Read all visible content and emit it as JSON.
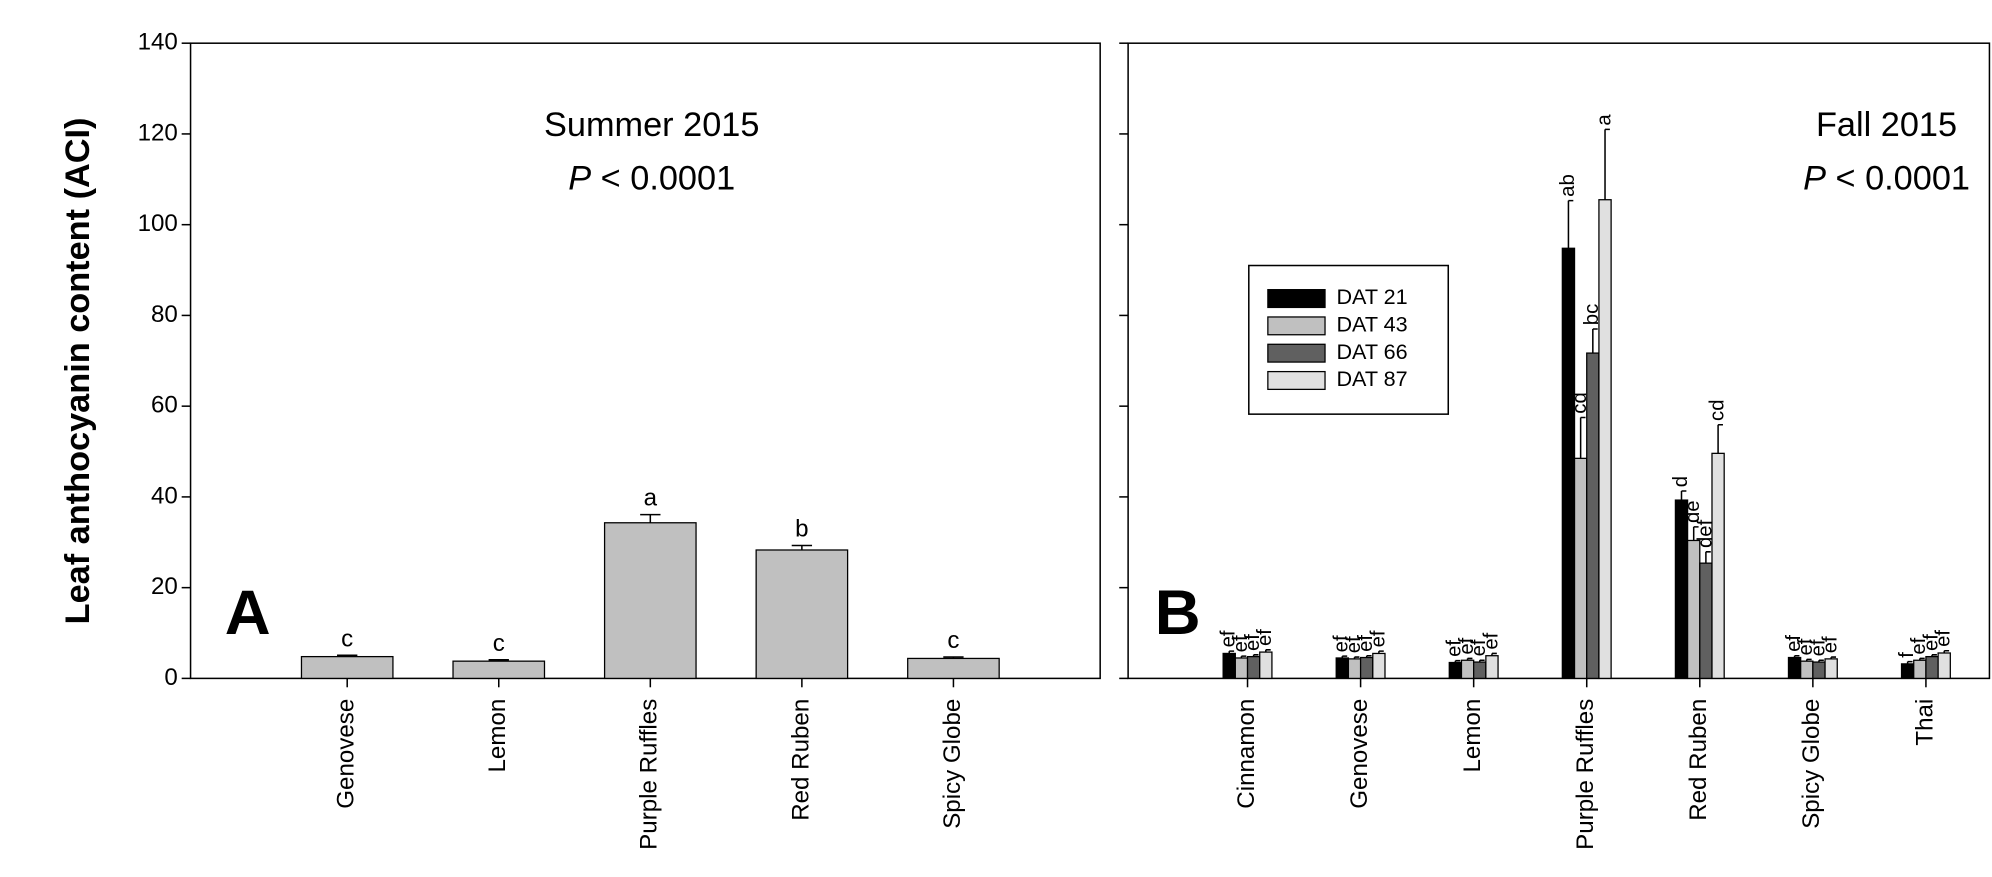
{
  "chart_data": [
    {
      "type": "bar",
      "title": "Summer 2015",
      "subtitle": "P < 0.0001",
      "panel": "A",
      "ylabel": "Leaf anthocyanin content (ACI)",
      "categories": [
        "Genovese",
        "Lemon",
        "Purple Ruffles",
        "Red Ruben",
        "Spicy Globe"
      ],
      "values": [
        4.8,
        3.8,
        34.3,
        28.3,
        4.4
      ],
      "errors": [
        0.3,
        0.3,
        1.8,
        1.0,
        0.3
      ],
      "letters": [
        "c",
        "c",
        "a",
        "b",
        "c"
      ],
      "color": "#c0c0c0",
      "ylim": [
        0,
        140
      ],
      "yticks": [
        0,
        20,
        40,
        60,
        80,
        100,
        120,
        140
      ]
    },
    {
      "type": "bar",
      "title": "Fall 2015",
      "subtitle": "P < 0.0001",
      "panel": "B",
      "categories": [
        "Cinnamon",
        "Genovese",
        "Lemon",
        "Purple Ruffles",
        "Red Ruben",
        "Spicy Globe",
        "Thai"
      ],
      "series": [
        {
          "name": "DAT 21",
          "color": "#000000",
          "values": [
            5.5,
            4.5,
            3.5,
            94.8,
            39.3,
            4.6,
            3.2
          ],
          "errors": [
            0.5,
            0.4,
            0.4,
            10.5,
            2.0,
            0.4,
            0.5
          ],
          "letters": [
            "ef",
            "ef",
            "ef",
            "ab",
            "d",
            "ef",
            "f"
          ]
        },
        {
          "name": "DAT 43",
          "color": "#c0c0c0",
          "values": [
            4.5,
            4.3,
            4.0,
            48.5,
            30.4,
            3.8,
            4.0
          ],
          "errors": [
            0.4,
            0.4,
            0.4,
            9.0,
            3.0,
            0.4,
            0.4
          ],
          "letters": [
            "ef",
            "ef",
            "ef",
            "cd",
            "de",
            "ef",
            "ef"
          ]
        },
        {
          "name": "DAT 66",
          "color": "#606060",
          "values": [
            4.8,
            4.6,
            3.6,
            71.7,
            25.4,
            3.6,
            4.8
          ],
          "errors": [
            0.4,
            0.4,
            0.4,
            5.3,
            2.5,
            0.4,
            0.4
          ],
          "letters": [
            "ef",
            "ef",
            "ef",
            "bc",
            "def",
            "ef",
            "ef"
          ]
        },
        {
          "name": "DAT 87",
          "color": "#e0e0e0",
          "values": [
            5.8,
            5.5,
            5.0,
            105.5,
            49.6,
            4.3,
            5.6
          ],
          "errors": [
            0.5,
            0.5,
            0.5,
            15.5,
            6.3,
            0.4,
            0.5
          ],
          "letters": [
            "ef",
            "ef",
            "ef",
            "a",
            "cd",
            "ef",
            "ef"
          ]
        }
      ],
      "ylim": [
        0,
        140
      ],
      "yticks": [
        0,
        20,
        40,
        60,
        80,
        100,
        120,
        140
      ]
    }
  ]
}
